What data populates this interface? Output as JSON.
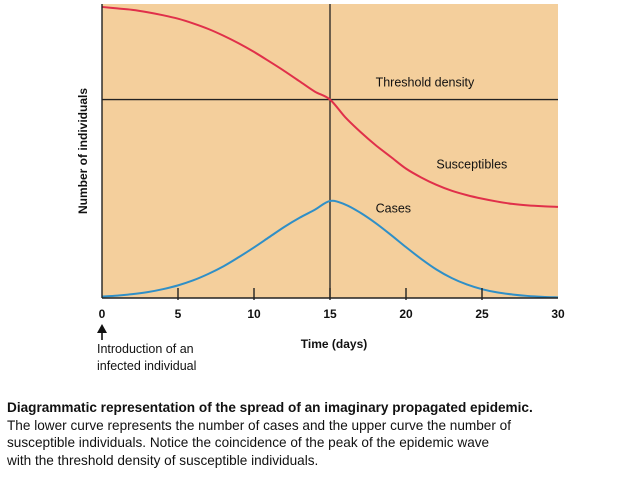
{
  "chart_data": {
    "type": "line",
    "xlabel": "Time (days)",
    "ylabel": "Number of individuals",
    "xlim": [
      0,
      30
    ],
    "xticks": [
      0,
      5,
      10,
      15,
      20,
      25,
      30
    ],
    "ylim": [
      0,
      1
    ],
    "y_tick_labels": false,
    "grid": false,
    "background": "#f4cf9c",
    "reference_lines": [
      {
        "orientation": "horizontal",
        "y": 0.675,
        "label": "Threshold density"
      },
      {
        "orientation": "vertical",
        "x": 15,
        "label": ""
      }
    ],
    "series": [
      {
        "name": "Susceptibles",
        "color": "#e0304a",
        "x": [
          0,
          1,
          2,
          3,
          4,
          5,
          6,
          7,
          8,
          9,
          10,
          11,
          12,
          13,
          14,
          15,
          16,
          17,
          18,
          19,
          20,
          21,
          22,
          23,
          24,
          25,
          26,
          27,
          28,
          29,
          30
        ],
        "values": [
          0.99,
          0.985,
          0.98,
          0.972,
          0.962,
          0.95,
          0.934,
          0.915,
          0.892,
          0.866,
          0.837,
          0.805,
          0.772,
          0.737,
          0.702,
          0.675,
          0.615,
          0.565,
          0.52,
          0.48,
          0.44,
          0.41,
          0.385,
          0.365,
          0.35,
          0.338,
          0.328,
          0.32,
          0.315,
          0.312,
          0.31
        ]
      },
      {
        "name": "Cases",
        "color": "#2f8fc7",
        "x": [
          0,
          1,
          2,
          3,
          4,
          5,
          6,
          7,
          8,
          9,
          10,
          11,
          12,
          13,
          14,
          15,
          16,
          17,
          18,
          19,
          20,
          21,
          22,
          23,
          24,
          25,
          26,
          27,
          28,
          29,
          30
        ],
        "values": [
          0.005,
          0.008,
          0.013,
          0.02,
          0.03,
          0.043,
          0.06,
          0.082,
          0.108,
          0.139,
          0.172,
          0.207,
          0.242,
          0.273,
          0.3,
          0.33,
          0.318,
          0.29,
          0.255,
          0.215,
          0.173,
          0.133,
          0.097,
          0.068,
          0.046,
          0.03,
          0.019,
          0.012,
          0.007,
          0.004,
          0.002
        ]
      }
    ],
    "annotations": [
      {
        "text": "Threshold density",
        "x": 18,
        "y": 0.72
      },
      {
        "text": "Susceptibles",
        "x": 22,
        "y": 0.44
      },
      {
        "text": "Cases",
        "x": 18,
        "y": 0.29
      }
    ],
    "arrow_annotation": {
      "x": 0,
      "lines": [
        "Introduction of an",
        "infected individual"
      ]
    }
  },
  "caption": {
    "title": "Diagrammatic representation of the spread of an imaginary propagated epidemic.",
    "lines": [
      "The lower curve represents the number of cases and the upper curve the number of",
      "susceptible individuals. Notice the coincidence of the peak of the epidemic wave",
      "with the threshold density of susceptible individuals."
    ]
  }
}
